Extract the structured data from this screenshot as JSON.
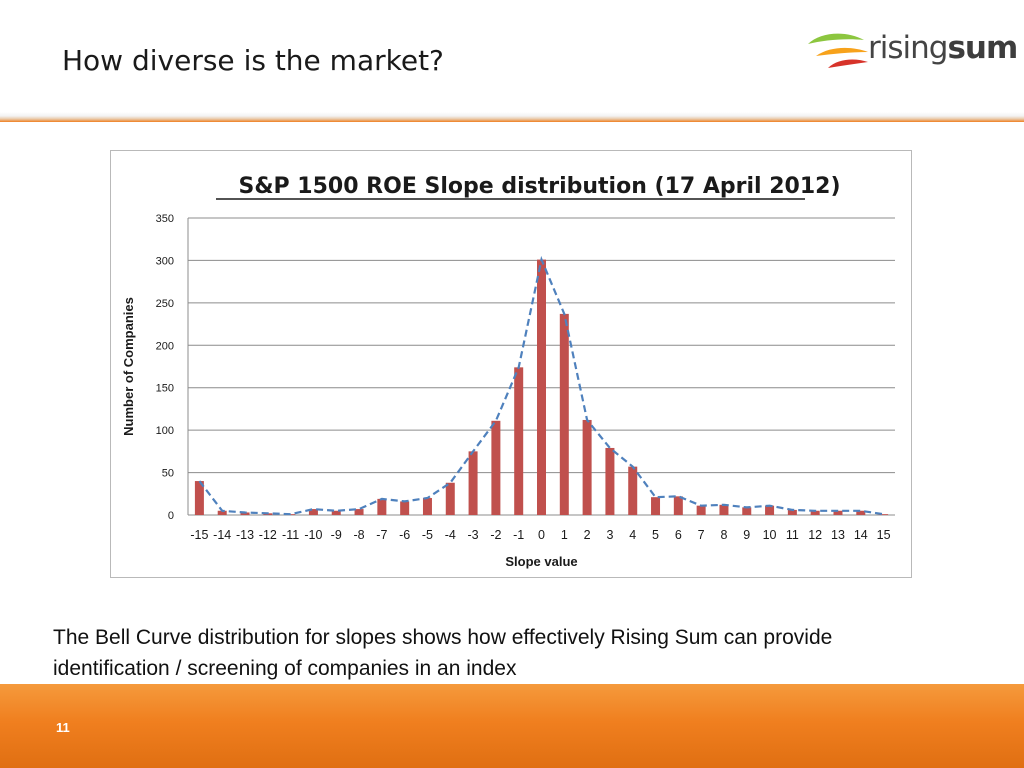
{
  "slide": {
    "title": "How diverse is the market?",
    "caption": "The Bell Curve distribution for slopes shows how effectively Rising Sum can provide identification / screening of companies in an index",
    "page_number": "11"
  },
  "logo": {
    "text_light": "rising",
    "text_bold": "sum",
    "colors": [
      "#8cc63f",
      "#f7a21b",
      "#d7332a"
    ]
  },
  "colors": {
    "bar": "#c0504d",
    "line": "#4f81bd",
    "accent": "#f07f1f"
  },
  "chart_data": {
    "type": "bar",
    "title": "S&P 1500 ROE Slope distribution (17 April 2012)",
    "xlabel": "Slope value",
    "ylabel": "Number of Companies",
    "ylim": [
      0,
      350
    ],
    "yticks": [
      0,
      50,
      100,
      150,
      200,
      250,
      300,
      350
    ],
    "grid": true,
    "categories": [
      "-15",
      "-14",
      "-13",
      "-12",
      "-11",
      "-10",
      "-9",
      "-8",
      "-7",
      "-6",
      "-5",
      "-4",
      "-3",
      "-2",
      "-1",
      "0",
      "1",
      "2",
      "3",
      "4",
      "5",
      "6",
      "7",
      "8",
      "9",
      "10",
      "11",
      "12",
      "13",
      "14",
      "15"
    ],
    "series": [
      {
        "values": [
          40,
          5,
          3,
          2,
          1,
          7,
          5,
          7,
          19,
          16,
          20,
          38,
          75,
          111,
          174,
          301,
          237,
          112,
          79,
          57,
          21,
          22,
          11,
          12,
          9,
          11,
          6,
          5,
          5,
          5,
          1
        ]
      }
    ],
    "trend_line": "dashed-line-through-bar-tops"
  }
}
